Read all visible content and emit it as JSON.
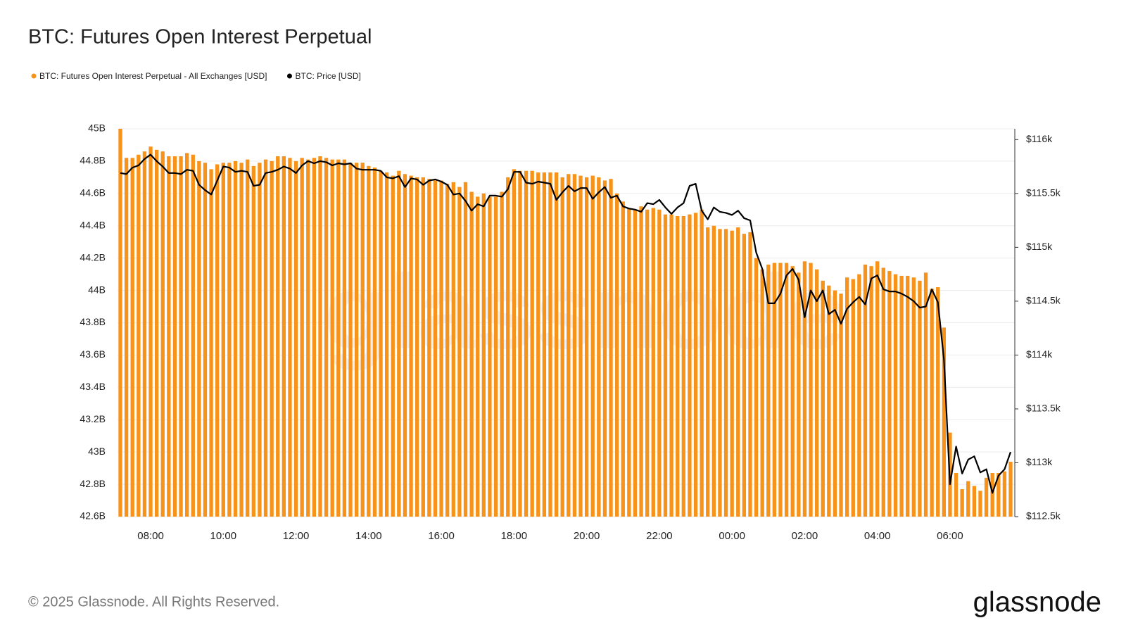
{
  "chart_data": {
    "type": "bar-line",
    "title": "BTC: Futures Open Interest Perpetual",
    "footer": "© 2025 Glassnode. All Rights Reserved.",
    "logo": "glassnode",
    "watermark": "glassnode",
    "x": [
      "07:10",
      "07:20",
      "07:30",
      "07:40",
      "07:50",
      "08:00",
      "08:10",
      "08:20",
      "08:30",
      "08:40",
      "08:50",
      "09:00",
      "09:10",
      "09:20",
      "09:30",
      "09:40",
      "09:50",
      "10:00",
      "10:10",
      "10:20",
      "10:30",
      "10:40",
      "10:50",
      "11:00",
      "11:10",
      "11:20",
      "11:30",
      "11:40",
      "11:50",
      "12:00",
      "12:10",
      "12:20",
      "12:30",
      "12:40",
      "12:50",
      "13:00",
      "13:10",
      "13:20",
      "13:30",
      "13:40",
      "13:50",
      "14:00",
      "14:10",
      "14:20",
      "14:30",
      "14:40",
      "14:50",
      "15:00",
      "15:10",
      "15:20",
      "15:30",
      "15:40",
      "15:50",
      "16:00",
      "16:10",
      "16:20",
      "16:30",
      "16:40",
      "16:50",
      "17:00",
      "17:10",
      "17:20",
      "17:30",
      "17:40",
      "17:50",
      "18:00",
      "18:10",
      "18:20",
      "18:30",
      "18:40",
      "18:50",
      "19:00",
      "19:10",
      "19:20",
      "19:30",
      "19:40",
      "19:50",
      "20:00",
      "20:10",
      "20:20",
      "20:30",
      "20:40",
      "20:50",
      "21:00",
      "21:10",
      "21:20",
      "21:30",
      "21:40",
      "21:50",
      "22:00",
      "22:10",
      "22:20",
      "22:30",
      "22:40",
      "22:50",
      "23:00",
      "23:10",
      "23:20",
      "23:30",
      "23:40",
      "23:50",
      "00:00",
      "00:10",
      "00:20",
      "00:30",
      "00:40",
      "00:50",
      "01:00",
      "01:10",
      "01:20",
      "01:30",
      "01:40",
      "01:50",
      "02:00",
      "02:10",
      "02:20",
      "02:30",
      "02:40",
      "02:50",
      "03:00",
      "03:10",
      "03:20",
      "03:30",
      "03:40",
      "03:50",
      "04:00",
      "04:10",
      "04:20",
      "04:30",
      "04:40",
      "04:50",
      "05:00",
      "05:10",
      "05:20",
      "05:30",
      "05:40",
      "05:50",
      "06:00",
      "06:10",
      "06:20",
      "06:30",
      "06:40",
      "06:50",
      "07:00",
      "07:10",
      "07:20",
      "07:30",
      "07:40"
    ],
    "series": [
      {
        "name": "BTC: Futures Open Interest Perpetual - All Exchanges [USD]",
        "color": "#f7931a",
        "axis": "y",
        "values": [
          45.0,
          44.82,
          44.82,
          44.84,
          44.86,
          44.89,
          44.87,
          44.86,
          44.83,
          44.83,
          44.83,
          44.85,
          44.84,
          44.8,
          44.79,
          44.75,
          44.78,
          44.79,
          44.79,
          44.8,
          44.79,
          44.81,
          44.77,
          44.79,
          44.81,
          44.8,
          44.83,
          44.83,
          44.82,
          44.8,
          44.82,
          44.81,
          44.82,
          44.83,
          44.82,
          44.81,
          44.81,
          44.81,
          44.79,
          44.79,
          44.79,
          44.77,
          44.76,
          44.74,
          44.73,
          44.71,
          44.74,
          44.72,
          44.71,
          44.7,
          44.7,
          44.69,
          44.68,
          44.68,
          44.66,
          44.67,
          44.64,
          44.67,
          44.61,
          44.58,
          44.6,
          44.58,
          44.58,
          44.61,
          44.7,
          44.75,
          44.74,
          44.74,
          44.74,
          44.73,
          44.73,
          44.73,
          44.73,
          44.7,
          44.72,
          44.72,
          44.71,
          44.7,
          44.71,
          44.7,
          44.68,
          44.69,
          44.6,
          44.55,
          44.51,
          44.5,
          44.52,
          44.5,
          44.51,
          44.5,
          44.47,
          44.47,
          44.46,
          44.46,
          44.47,
          44.48,
          44.5,
          44.39,
          44.4,
          44.38,
          44.38,
          44.37,
          44.39,
          44.35,
          44.36,
          44.2,
          44.13,
          44.16,
          44.17,
          44.17,
          44.17,
          44.15,
          44.11,
          44.18,
          44.17,
          44.13,
          44.06,
          44.03,
          44.0,
          43.98,
          44.08,
          44.07,
          44.1,
          44.16,
          44.15,
          44.18,
          44.14,
          44.12,
          44.1,
          44.09,
          44.09,
          44.08,
          44.06,
          44.11,
          44.01,
          44.02,
          43.77,
          43.12,
          42.87,
          42.77,
          42.82,
          42.79,
          42.76,
          42.84,
          42.87,
          42.87,
          42.88,
          42.94
        ]
      },
      {
        "name": "BTC: Price [USD]",
        "color": "#000000",
        "axis": "y2",
        "values": [
          115690,
          115680,
          115740,
          115760,
          115820,
          115860,
          115800,
          115750,
          115690,
          115690,
          115680,
          115720,
          115710,
          115580,
          115530,
          115490,
          115620,
          115750,
          115740,
          115700,
          115710,
          115700,
          115570,
          115580,
          115690,
          115700,
          115720,
          115750,
          115730,
          115690,
          115760,
          115800,
          115780,
          115800,
          115790,
          115760,
          115780,
          115770,
          115780,
          115730,
          115720,
          115720,
          115720,
          115710,
          115650,
          115640,
          115660,
          115560,
          115640,
          115630,
          115580,
          115620,
          115630,
          115610,
          115580,
          115490,
          115500,
          115430,
          115340,
          115400,
          115380,
          115480,
          115480,
          115470,
          115540,
          115700,
          115700,
          115600,
          115590,
          115610,
          115600,
          115590,
          115440,
          115510,
          115570,
          115520,
          115550,
          115550,
          115450,
          115510,
          115560,
          115460,
          115480,
          115380,
          115360,
          115350,
          115330,
          115410,
          115400,
          115440,
          115370,
          115310,
          115370,
          115410,
          115570,
          115590,
          115340,
          115260,
          115370,
          115330,
          115320,
          115300,
          115340,
          115270,
          115250,
          114950,
          114800,
          114480,
          114480,
          114570,
          114740,
          114800,
          114700,
          114350,
          114600,
          114500,
          114600,
          114380,
          114420,
          114290,
          114430,
          114490,
          114540,
          114470,
          114710,
          114740,
          114610,
          114590,
          114590,
          114570,
          114540,
          114500,
          114440,
          114450,
          114610,
          114490,
          113960,
          112800,
          113150,
          112900,
          113030,
          113060,
          112910,
          112940,
          112720,
          112880,
          112940,
          113100
        ]
      }
    ],
    "ylim": [
      42.6,
      45
    ],
    "yticks": [
      {
        "value": 42.6,
        "label": "42.6B"
      },
      {
        "value": 42.8,
        "label": "42.8B"
      },
      {
        "value": 43,
        "label": "43B"
      },
      {
        "value": 43.2,
        "label": "43.2B"
      },
      {
        "value": 43.4,
        "label": "43.4B"
      },
      {
        "value": 43.6,
        "label": "43.6B"
      },
      {
        "value": 43.8,
        "label": "43.8B"
      },
      {
        "value": 44,
        "label": "44B"
      },
      {
        "value": 44.2,
        "label": "44.2B"
      },
      {
        "value": 44.4,
        "label": "44.4B"
      },
      {
        "value": 44.6,
        "label": "44.6B"
      },
      {
        "value": 44.8,
        "label": "44.8B"
      },
      {
        "value": 45,
        "label": "45B"
      }
    ],
    "y2lim": [
      112500,
      116100
    ],
    "y2ticks": [
      {
        "value": 112500,
        "label": "$112.5k"
      },
      {
        "value": 113000,
        "label": "$113k"
      },
      {
        "value": 113500,
        "label": "$113.5k"
      },
      {
        "value": 114000,
        "label": "$114k"
      },
      {
        "value": 114500,
        "label": "$114.5k"
      },
      {
        "value": 115000,
        "label": "$115k"
      },
      {
        "value": 115500,
        "label": "$115.5k"
      },
      {
        "value": 116000,
        "label": "$116k"
      }
    ],
    "xticks": [
      "08:00",
      "10:00",
      "12:00",
      "14:00",
      "16:00",
      "18:00",
      "20:00",
      "22:00",
      "00:00",
      "02:00",
      "04:00",
      "06:00"
    ],
    "grid": true
  }
}
